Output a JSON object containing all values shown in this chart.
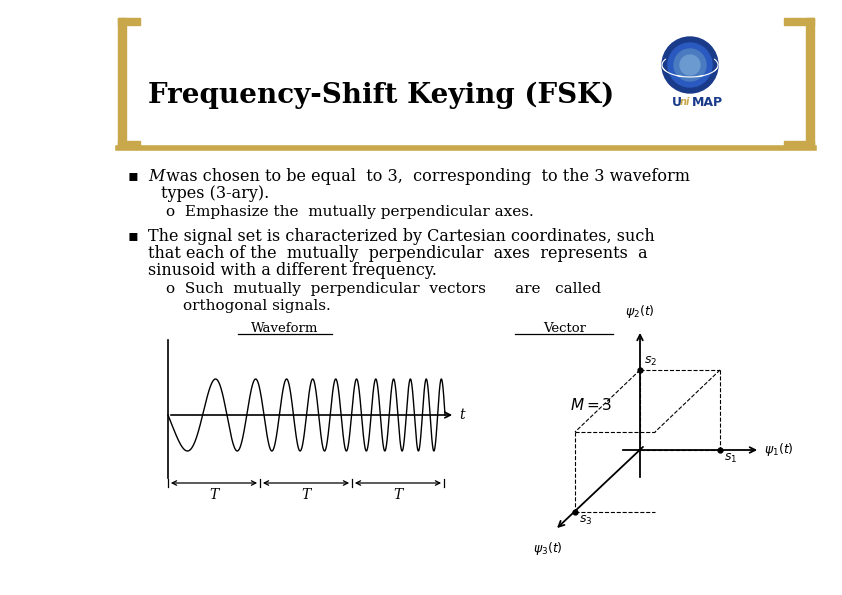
{
  "title": "Frequency-Shift Keying (FSK)",
  "background_color": "#ffffff",
  "title_color": "#000000",
  "title_fontsize": 20,
  "accent_color": "#c8a84b",
  "bracket_color": "#c8a84b",
  "waveform_label": "Waveform",
  "vector_label": "Vector",
  "M_label": "M = 3",
  "psi1_label": "$\\psi_1(t)$",
  "psi2_label": "$\\psi_2(t)$",
  "psi3_label": "$\\psi_3(t)$",
  "s1_label": "$s_1$",
  "s2_label": "$s_2$",
  "s3_label": "$s_3$",
  "t_label": "t",
  "T_label": "T",
  "line_color": "#000000",
  "text_color": "#000000",
  "body_fontsize": 11.5,
  "sub_fontsize": 11.0
}
